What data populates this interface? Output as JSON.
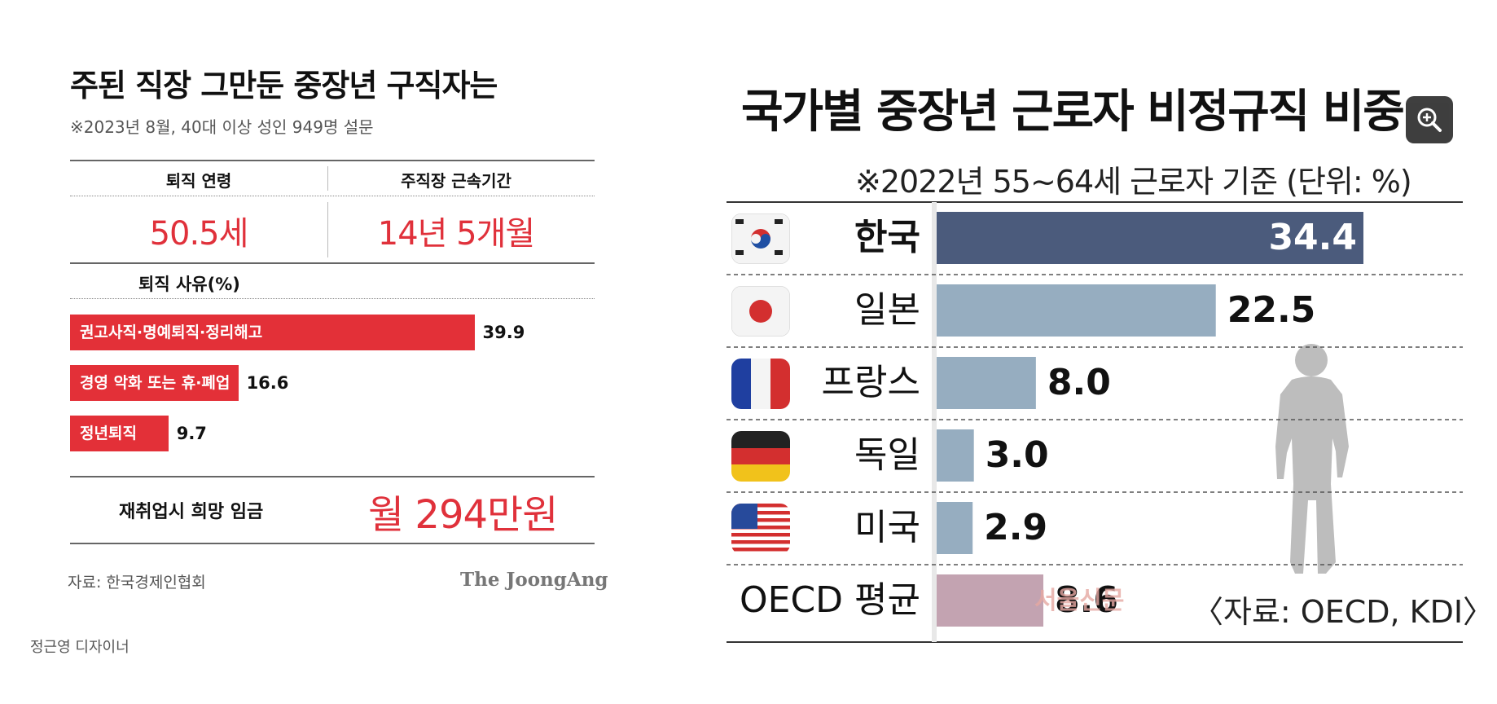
{
  "left": {
    "title": "주된 직장 그만둔 중장년 구직자는",
    "subtitle": "※2023년 8월, 40대 이상 성인 949명 설문",
    "retire_age": {
      "label": "퇴직 연령",
      "value": "50.5세"
    },
    "tenure": {
      "label": "주직장 근속기간",
      "value": "14년 5개월"
    },
    "reasons_title": "퇴직 사유(%)",
    "wage": {
      "label": "재취업시 희망 임금",
      "value": "월 294만원"
    },
    "source": "자료: 한국경제인협회",
    "brand": "The JoongAng",
    "designer": "정근영 디자이너",
    "accent_color": "#e33038"
  },
  "right": {
    "title": "국가별 중장년 근로자 비정규직 비중",
    "subtitle": "※2022년 55~64세 근로자 기준 (단위: %)",
    "source": "〈자료: OECD, KDI〉",
    "watermark": "서울신문",
    "zoom_icon": "zoom-in-icon"
  },
  "chart_data": [
    {
      "type": "bar",
      "orientation": "horizontal",
      "title": "퇴직 사유(%)",
      "categories": [
        "권고사직·명예퇴직·정리해고",
        "경영 악화 또는 휴·폐업",
        "정년퇴직"
      ],
      "values": [
        39.9,
        16.6,
        9.7
      ],
      "value_labels": [
        "39.9",
        "16.6",
        "9.7"
      ],
      "xlim": [
        0,
        45
      ],
      "colors": [
        "#e33038",
        "#e33038",
        "#e33038"
      ],
      "grid": false
    },
    {
      "type": "bar",
      "orientation": "horizontal",
      "title": "국가별 중장년 근로자 비정규직 비중",
      "categories": [
        "한국",
        "일본",
        "프랑스",
        "독일",
        "미국",
        "OECD 평균"
      ],
      "values": [
        34.4,
        22.5,
        8.0,
        3.0,
        2.9,
        8.6
      ],
      "value_labels": [
        "34.4",
        "22.5",
        "8.0",
        "3.0",
        "2.9",
        "8.6"
      ],
      "flags": [
        "korea-flag-icon",
        "japan-flag-icon",
        "france-flag-icon",
        "germany-flag-icon",
        "usa-flag-icon",
        ""
      ],
      "colors": [
        "#4b5b7c",
        "#96adc0",
        "#96adc0",
        "#96adc0",
        "#96adc0",
        "#c3a3b1"
      ],
      "xlim": [
        0,
        34.4
      ],
      "grid": false
    }
  ]
}
